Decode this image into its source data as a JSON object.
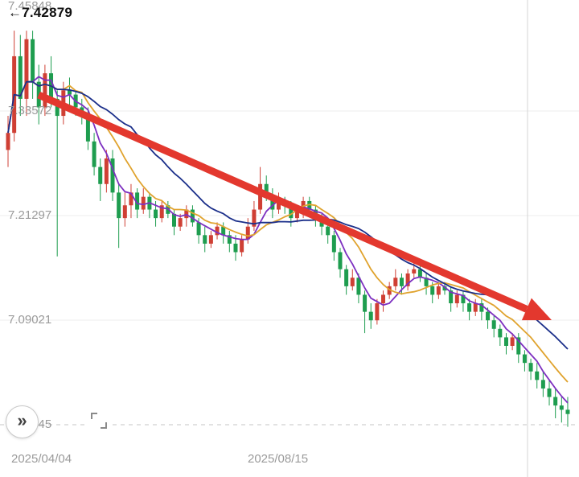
{
  "price_marker": {
    "arrow": "←",
    "value": "7.42879"
  },
  "toolbar": {
    "expand_glyph": "»"
  },
  "chart_data": {
    "type": "candlestick",
    "title": "",
    "note": "Downtrending price chart with red trend arrow; red = up candle, green = down candle (CN convention)",
    "y_axis": {
      "range": [
        6.95,
        7.47
      ],
      "ticks": [
        {
          "value": 7.45848,
          "label": "7.45848",
          "show_line": false
        },
        {
          "value": 7.33572,
          "label": "7.33572"
        },
        {
          "value": 7.21297,
          "label": "7.21297"
        },
        {
          "value": 7.09021,
          "label": "7.09021"
        },
        {
          "value": 6.96745,
          "label": "6.96745",
          "dashed": true
        }
      ]
    },
    "x_axis": {
      "ticks": [
        {
          "label": "2025/04/04"
        },
        {
          "label": "2025/08/15"
        }
      ]
    },
    "up_color": "#cf3f34",
    "down_color": "#1e9d4f",
    "ma": [
      {
        "period": 5,
        "color": "#7d30c0"
      },
      {
        "period": 10,
        "color": "#e0a32e"
      },
      {
        "period": 20,
        "color": "#1b2f8a"
      }
    ],
    "trend_arrow": {
      "from": [
        48,
        118
      ],
      "to": [
        686,
        398
      ],
      "color": "#e3382e"
    },
    "candles": [
      [
        7.29,
        7.33,
        7.27,
        7.31
      ],
      [
        7.31,
        7.43,
        7.3,
        7.4
      ],
      [
        7.4,
        7.425,
        7.33,
        7.35
      ],
      [
        7.35,
        7.43,
        7.33,
        7.42
      ],
      [
        7.42,
        7.43,
        7.35,
        7.37
      ],
      [
        7.37,
        7.39,
        7.32,
        7.34
      ],
      [
        7.34,
        7.39,
        7.33,
        7.38
      ],
      [
        7.38,
        7.4,
        7.34,
        7.35
      ],
      [
        7.35,
        7.36,
        7.165,
        7.33
      ],
      [
        7.33,
        7.37,
        7.32,
        7.36
      ],
      [
        7.36,
        7.375,
        7.34,
        7.355
      ],
      [
        7.355,
        7.36,
        7.33,
        7.34
      ],
      [
        7.34,
        7.35,
        7.32,
        7.33
      ],
      [
        7.33,
        7.34,
        7.29,
        7.3
      ],
      [
        7.3,
        7.31,
        7.26,
        7.27
      ],
      [
        7.27,
        7.28,
        7.23,
        7.25
      ],
      [
        7.25,
        7.29,
        7.24,
        7.28
      ],
      [
        7.28,
        7.29,
        7.23,
        7.24
      ],
      [
        7.24,
        7.25,
        7.175,
        7.21
      ],
      [
        7.21,
        7.24,
        7.2,
        7.225
      ],
      [
        7.225,
        7.25,
        7.21,
        7.24
      ],
      [
        7.24,
        7.245,
        7.21,
        7.22
      ],
      [
        7.22,
        7.245,
        7.215,
        7.235
      ],
      [
        7.235,
        7.24,
        7.21,
        7.22
      ],
      [
        7.22,
        7.23,
        7.2,
        7.21
      ],
      [
        7.21,
        7.23,
        7.205,
        7.225
      ],
      [
        7.225,
        7.23,
        7.21,
        7.215
      ],
      [
        7.215,
        7.22,
        7.19,
        7.2
      ],
      [
        7.2,
        7.215,
        7.195,
        7.21
      ],
      [
        7.21,
        7.225,
        7.2,
        7.22
      ],
      [
        7.22,
        7.225,
        7.2,
        7.205
      ],
      [
        7.205,
        7.21,
        7.18,
        7.19
      ],
      [
        7.19,
        7.2,
        7.17,
        7.18
      ],
      [
        7.18,
        7.195,
        7.175,
        7.19
      ],
      [
        7.19,
        7.205,
        7.185,
        7.2
      ],
      [
        7.2,
        7.205,
        7.18,
        7.19
      ],
      [
        7.19,
        7.195,
        7.17,
        7.18
      ],
      [
        7.18,
        7.19,
        7.16,
        7.17
      ],
      [
        7.17,
        7.19,
        7.165,
        7.185
      ],
      [
        7.185,
        7.21,
        7.18,
        7.2
      ],
      [
        7.2,
        7.23,
        7.195,
        7.22
      ],
      [
        7.22,
        7.27,
        7.215,
        7.25
      ],
      [
        7.25,
        7.26,
        7.23,
        7.235
      ],
      [
        7.235,
        7.245,
        7.21,
        7.22
      ],
      [
        7.22,
        7.24,
        7.215,
        7.23
      ],
      [
        7.23,
        7.235,
        7.215,
        7.225
      ],
      [
        7.225,
        7.23,
        7.2,
        7.21
      ],
      [
        7.21,
        7.225,
        7.205,
        7.22
      ],
      [
        7.22,
        7.235,
        7.21,
        7.23
      ],
      [
        7.23,
        7.235,
        7.215,
        7.22
      ],
      [
        7.22,
        7.225,
        7.2,
        7.21
      ],
      [
        7.21,
        7.215,
        7.19,
        7.2
      ],
      [
        7.2,
        7.205,
        7.18,
        7.19
      ],
      [
        7.19,
        7.195,
        7.16,
        7.17
      ],
      [
        7.17,
        7.175,
        7.14,
        7.15
      ],
      [
        7.15,
        7.155,
        7.12,
        7.13
      ],
      [
        7.13,
        7.15,
        7.125,
        7.14
      ],
      [
        7.14,
        7.145,
        7.11,
        7.12
      ],
      [
        7.12,
        7.125,
        7.075,
        7.1
      ],
      [
        7.1,
        7.11,
        7.08,
        7.09
      ],
      [
        7.09,
        7.115,
        7.085,
        7.11
      ],
      [
        7.11,
        7.125,
        7.1,
        7.12
      ],
      [
        7.12,
        7.135,
        7.115,
        7.13
      ],
      [
        7.13,
        7.15,
        7.125,
        7.14
      ],
      [
        7.14,
        7.145,
        7.12,
        7.13
      ],
      [
        7.13,
        7.15,
        7.125,
        7.145
      ],
      [
        7.145,
        7.16,
        7.14,
        7.15
      ],
      [
        7.15,
        7.155,
        7.135,
        7.14
      ],
      [
        7.14,
        7.145,
        7.12,
        7.13
      ],
      [
        7.13,
        7.135,
        7.11,
        7.12
      ],
      [
        7.12,
        7.135,
        7.115,
        7.13
      ],
      [
        7.13,
        7.135,
        7.12,
        7.125
      ],
      [
        7.125,
        7.13,
        7.1,
        7.11
      ],
      [
        7.11,
        7.125,
        7.105,
        7.12
      ],
      [
        7.12,
        7.125,
        7.1,
        7.11
      ],
      [
        7.11,
        7.115,
        7.09,
        7.1
      ],
      [
        7.1,
        7.115,
        7.095,
        7.11
      ],
      [
        7.11,
        7.115,
        7.09,
        7.1
      ],
      [
        7.1,
        7.105,
        7.08,
        7.09
      ],
      [
        7.09,
        7.095,
        7.07,
        7.08
      ],
      [
        7.08,
        7.085,
        7.06,
        7.07
      ],
      [
        7.07,
        7.075,
        7.05,
        7.06
      ],
      [
        7.06,
        7.075,
        7.055,
        7.07
      ],
      [
        7.07,
        7.075,
        7.04,
        7.05
      ],
      [
        7.05,
        7.055,
        7.03,
        7.04
      ],
      [
        7.04,
        7.045,
        7.02,
        7.03
      ],
      [
        7.03,
        7.04,
        7.01,
        7.02
      ],
      [
        7.02,
        7.03,
        7.0,
        7.01
      ],
      [
        7.01,
        7.02,
        6.99,
        7.0
      ],
      [
        7.0,
        7.01,
        6.975,
        6.99
      ],
      [
        6.99,
        7.0,
        6.97,
        6.985
      ],
      [
        6.985,
        7.0,
        6.965,
        6.98
      ]
    ]
  }
}
